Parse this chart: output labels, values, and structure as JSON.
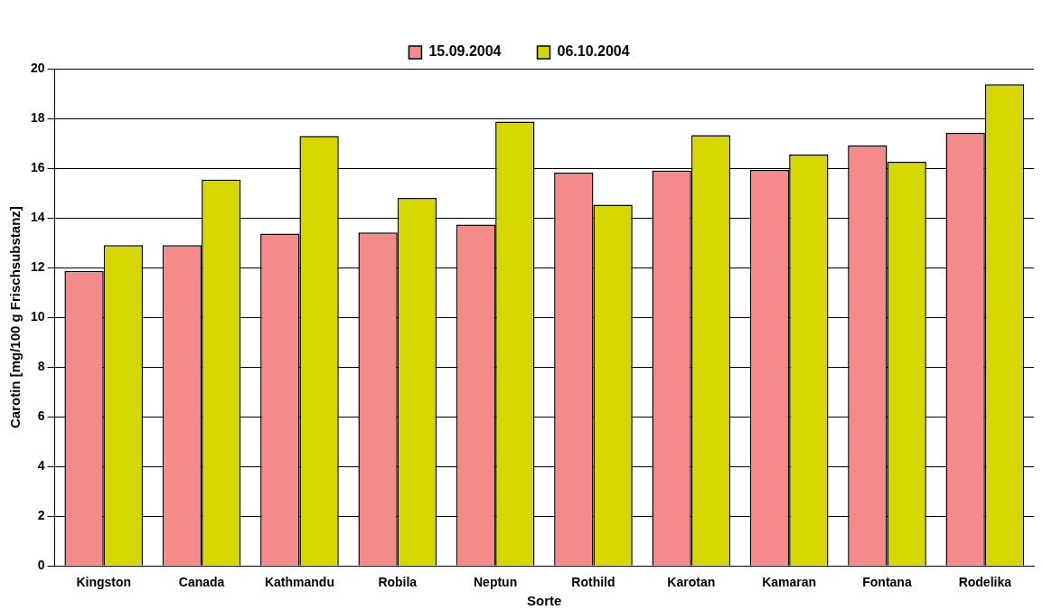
{
  "chart_data": {
    "type": "bar",
    "xlabel": "Sorte",
    "ylabel": "Carotin [mg/100 g Frischsubstanz]",
    "categories": [
      "Kingston",
      "Canada",
      "Kathmandu",
      "Robila",
      "Neptun",
      "Rothild",
      "Karotan",
      "Kamaran",
      "Fontana",
      "Rodelika"
    ],
    "series": [
      {
        "name": "15.09.2004",
        "color": "#f48a8a",
        "values": [
          11.87,
          12.9,
          13.37,
          13.41,
          13.73,
          15.82,
          15.9,
          15.93,
          16.91,
          17.42
        ]
      },
      {
        "name": "06.10.2004",
        "color": "#d6d600",
        "values": [
          12.9,
          15.54,
          17.29,
          14.8,
          17.87,
          14.53,
          17.33,
          16.55,
          16.26,
          19.37
        ]
      }
    ],
    "ylim": [
      0,
      20
    ],
    "yticks": [
      0,
      2,
      4,
      6,
      8,
      10,
      12,
      14,
      16,
      18,
      20
    ],
    "grid": "y",
    "legend": "top"
  }
}
